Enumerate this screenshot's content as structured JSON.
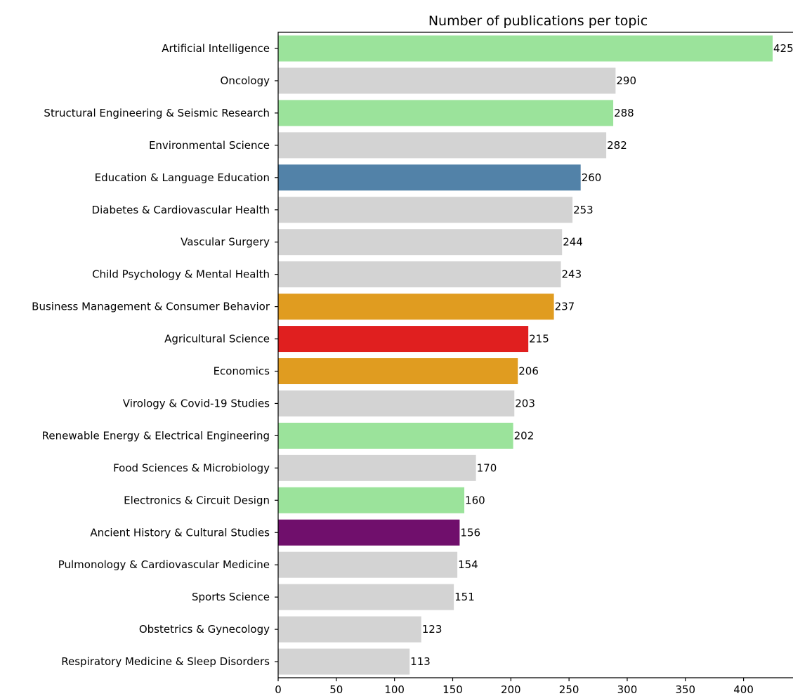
{
  "chart_data": {
    "type": "bar",
    "orientation": "horizontal",
    "title": "Number of publications per topic",
    "xlabel": "",
    "ylabel": "",
    "xlim": [
      0,
      440
    ],
    "xticks": [
      0,
      50,
      100,
      150,
      200,
      250,
      300,
      350,
      400
    ],
    "grid": false,
    "legend": "none",
    "categories": [
      "Artificial Intelligence",
      "Oncology",
      "Structural Engineering & Seismic Research",
      "Environmental Science",
      "Education & Language Education",
      "Diabetes & Cardiovascular Health",
      "Vascular Surgery",
      "Child Psychology & Mental Health",
      "Business Management & Consumer Behavior",
      "Agricultural Science",
      "Economics",
      "Virology & Covid-19 Studies",
      "Renewable Energy & Electrical Engineering",
      "Food Sciences & Microbiology",
      "Electronics & Circuit Design",
      "Ancient History & Cultural Studies",
      "Pulmonology & Cardiovascular Medicine",
      "Sports Science",
      "Obstetrics & Gynecology",
      "Respiratory Medicine & Sleep Disorders"
    ],
    "values": [
      425,
      290,
      288,
      282,
      260,
      253,
      244,
      243,
      237,
      215,
      206,
      203,
      202,
      170,
      160,
      156,
      154,
      151,
      123,
      113
    ],
    "colors": [
      "#9be39b",
      "#d3d3d3",
      "#9be39b",
      "#d3d3d3",
      "#5282a8",
      "#d3d3d3",
      "#d3d3d3",
      "#d3d3d3",
      "#e09c20",
      "#e01f1f",
      "#e09c20",
      "#d3d3d3",
      "#9be39b",
      "#d3d3d3",
      "#9be39b",
      "#700f6c",
      "#d3d3d3",
      "#d3d3d3",
      "#d3d3d3",
      "#d3d3d3"
    ]
  }
}
